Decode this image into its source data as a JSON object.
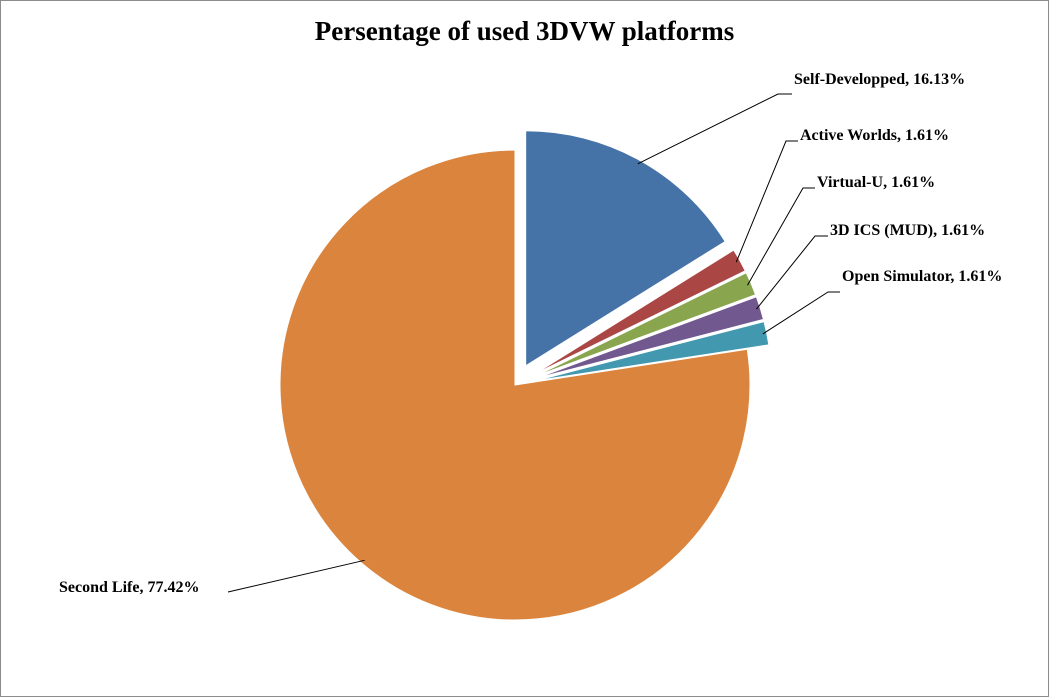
{
  "chart_data": {
    "type": "pie",
    "title": "Persentage of used 3DVW platforms",
    "slices": [
      {
        "label": "Self-Developped",
        "value": 16.13,
        "value_label": "16.13%",
        "color": "#4572A7",
        "exploded": true
      },
      {
        "label": "Active Worlds",
        "value": 1.61,
        "value_label": "1.61%",
        "color": "#AA4643",
        "exploded": true
      },
      {
        "label": "Virtual-U",
        "value": 1.61,
        "value_label": "1.61%",
        "color": "#89A54E",
        "exploded": true
      },
      {
        "label": "3D ICS (MUD)",
        "value": 1.61,
        "value_label": "1.61%",
        "color": "#71588F",
        "exploded": true
      },
      {
        "label": "Open Simulator",
        "value": 1.61,
        "value_label": "1.61%",
        "color": "#4198AF",
        "exploded": true
      },
      {
        "label": "Second Life",
        "value": 77.42,
        "value_label": "77.42%",
        "color": "#DB843D",
        "exploded": false
      }
    ]
  }
}
